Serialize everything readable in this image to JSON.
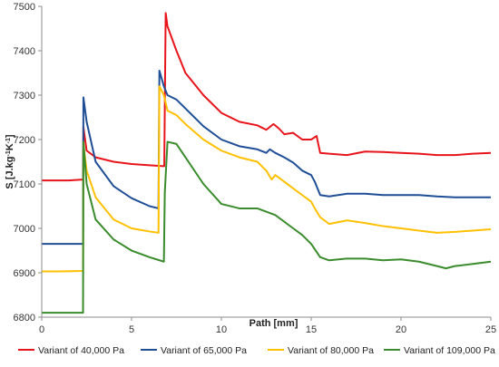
{
  "chart_data": {
    "type": "line",
    "xlabel": "Path [mm]",
    "ylabel_parts": [
      "S [J.kg",
      "-1",
      "K",
      "-1",
      "]"
    ],
    "xlim": [
      0,
      25
    ],
    "ylim": [
      6800,
      7500
    ],
    "x_ticks": [
      0,
      5,
      10,
      15,
      20,
      25
    ],
    "y_ticks": [
      6800,
      6900,
      7000,
      7100,
      7200,
      7300,
      7400,
      7500
    ],
    "grid": false,
    "legend_position": "bottom",
    "series": [
      {
        "name": "Variant of 40,000 Pa",
        "color": "#e8141b",
        "points": [
          [
            0,
            7108
          ],
          [
            1,
            7108
          ],
          [
            1.5,
            7108
          ],
          [
            2.3,
            7110
          ],
          [
            2.32,
            7228
          ],
          [
            2.5,
            7175
          ],
          [
            3,
            7160
          ],
          [
            4,
            7150
          ],
          [
            5,
            7145
          ],
          [
            6,
            7142
          ],
          [
            6.8,
            7140
          ],
          [
            6.82,
            7140
          ],
          [
            6.9,
            7485
          ],
          [
            7,
            7455
          ],
          [
            7.5,
            7400
          ],
          [
            8,
            7350
          ],
          [
            9,
            7300
          ],
          [
            10,
            7260
          ],
          [
            11,
            7240
          ],
          [
            12,
            7232
          ],
          [
            12.5,
            7222
          ],
          [
            12.9,
            7235
          ],
          [
            13.2,
            7225
          ],
          [
            13.5,
            7212
          ],
          [
            14,
            7215
          ],
          [
            14.5,
            7200
          ],
          [
            15,
            7200
          ],
          [
            15.3,
            7208
          ],
          [
            15.5,
            7170
          ],
          [
            16,
            7168
          ],
          [
            17,
            7165
          ],
          [
            18,
            7173
          ],
          [
            19,
            7172
          ],
          [
            20,
            7170
          ],
          [
            21,
            7168
          ],
          [
            22,
            7165
          ],
          [
            23,
            7165
          ],
          [
            24,
            7168
          ],
          [
            25,
            7170
          ]
        ]
      },
      {
        "name": "Variant of 65,000 Pa",
        "color": "#1f4e96",
        "points": [
          [
            0,
            6965
          ],
          [
            1,
            6965
          ],
          [
            2.3,
            6965
          ],
          [
            2.32,
            7295
          ],
          [
            2.5,
            7240
          ],
          [
            3,
            7150
          ],
          [
            4,
            7095
          ],
          [
            5,
            7068
          ],
          [
            6,
            7050
          ],
          [
            6.5,
            7045
          ],
          [
            6.55,
            7355
          ],
          [
            6.8,
            7320
          ],
          [
            7,
            7300
          ],
          [
            7.5,
            7290
          ],
          [
            8,
            7270
          ],
          [
            9,
            7230
          ],
          [
            10,
            7200
          ],
          [
            11,
            7185
          ],
          [
            12,
            7178
          ],
          [
            12.5,
            7170
          ],
          [
            12.7,
            7178
          ],
          [
            13,
            7170
          ],
          [
            13.5,
            7160
          ],
          [
            14,
            7148
          ],
          [
            14.5,
            7130
          ],
          [
            15,
            7120
          ],
          [
            15.2,
            7105
          ],
          [
            15.5,
            7075
          ],
          [
            16,
            7072
          ],
          [
            17,
            7078
          ],
          [
            18,
            7078
          ],
          [
            19,
            7075
          ],
          [
            20,
            7075
          ],
          [
            21,
            7075
          ],
          [
            22,
            7072
          ],
          [
            23,
            7070
          ],
          [
            24,
            7070
          ],
          [
            25,
            7070
          ]
        ]
      },
      {
        "name": "Variant of 80,000 Pa",
        "color": "#ffc000",
        "points": [
          [
            0,
            6903
          ],
          [
            1,
            6903
          ],
          [
            2.3,
            6904
          ],
          [
            2.32,
            7190
          ],
          [
            2.5,
            7130
          ],
          [
            3,
            7070
          ],
          [
            4,
            7020
          ],
          [
            5,
            7000
          ],
          [
            6,
            6993
          ],
          [
            6.5,
            6990
          ],
          [
            6.55,
            7320
          ],
          [
            6.8,
            7300
          ],
          [
            7,
            7265
          ],
          [
            7.5,
            7255
          ],
          [
            8,
            7235
          ],
          [
            9,
            7200
          ],
          [
            10,
            7175
          ],
          [
            11,
            7160
          ],
          [
            12,
            7150
          ],
          [
            12.5,
            7130
          ],
          [
            12.8,
            7110
          ],
          [
            13,
            7120
          ],
          [
            13.5,
            7105
          ],
          [
            14,
            7090
          ],
          [
            14.5,
            7075
          ],
          [
            15,
            7060
          ],
          [
            15.2,
            7045
          ],
          [
            15.5,
            7025
          ],
          [
            16,
            7010
          ],
          [
            17,
            7018
          ],
          [
            18,
            7012
          ],
          [
            19,
            7005
          ],
          [
            20,
            7000
          ],
          [
            21,
            6995
          ],
          [
            22,
            6990
          ],
          [
            23,
            6992
          ],
          [
            24,
            6995
          ],
          [
            25,
            6998
          ]
        ]
      },
      {
        "name": "Variant of 109,000 Pa",
        "color": "#3a8b2c",
        "points": [
          [
            0,
            6810
          ],
          [
            1,
            6810
          ],
          [
            2.3,
            6810
          ],
          [
            2.32,
            7195
          ],
          [
            2.5,
            7100
          ],
          [
            3,
            7020
          ],
          [
            4,
            6975
          ],
          [
            5,
            6950
          ],
          [
            6,
            6935
          ],
          [
            6.8,
            6925
          ],
          [
            6.85,
            7080
          ],
          [
            7,
            7195
          ],
          [
            7.5,
            7190
          ],
          [
            8,
            7160
          ],
          [
            9,
            7100
          ],
          [
            10,
            7055
          ],
          [
            11,
            7045
          ],
          [
            12,
            7045
          ],
          [
            13,
            7030
          ],
          [
            14,
            7000
          ],
          [
            14.5,
            6985
          ],
          [
            15,
            6965
          ],
          [
            15.5,
            6935
          ],
          [
            16,
            6928
          ],
          [
            17,
            6932
          ],
          [
            18,
            6932
          ],
          [
            19,
            6928
          ],
          [
            20,
            6930
          ],
          [
            21,
            6925
          ],
          [
            22,
            6915
          ],
          [
            22.5,
            6910
          ],
          [
            23,
            6915
          ],
          [
            24,
            6920
          ],
          [
            25,
            6925
          ]
        ]
      }
    ]
  }
}
